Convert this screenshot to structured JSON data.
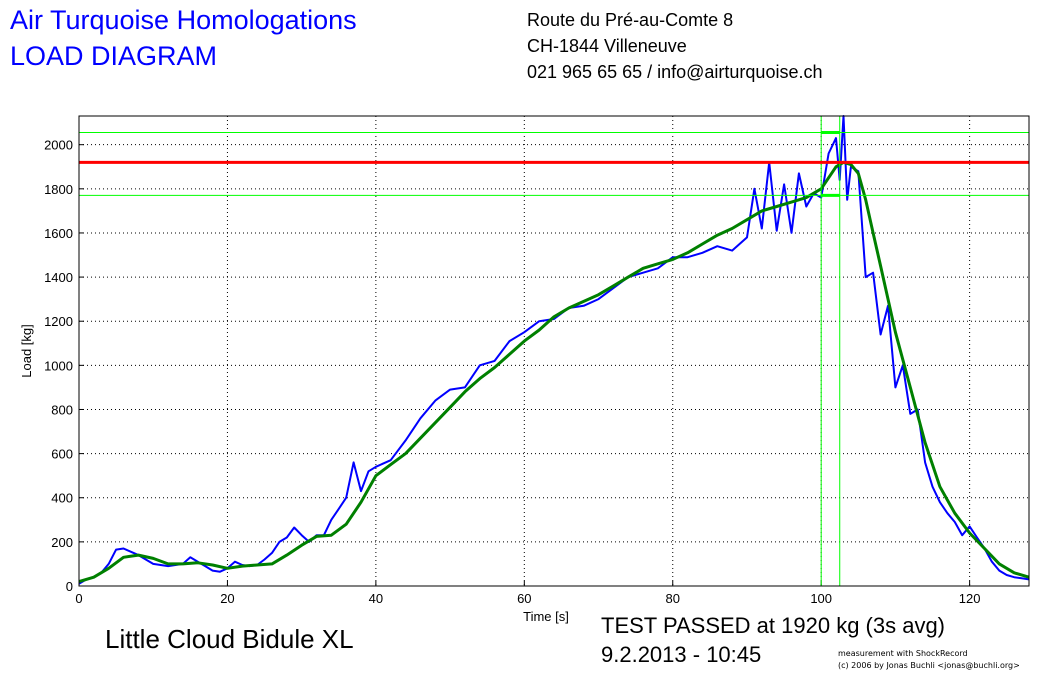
{
  "header": {
    "title_line1": "Air Turquoise Homologations",
    "title_line2": "LOAD DIAGRAM",
    "address_line1": "Route du Pré-au-Comte 8",
    "address_line2": "CH-1844 Villeneuve",
    "address_line3": "021 965 65 65 / info@airturquoise.ch"
  },
  "footer": {
    "glider_name": "Little Cloud Bidule XL",
    "result": "TEST PASSED at 1920 kg (3s avg)",
    "datetime": "9.2.2013 - 10:45",
    "credit_line1": "measurement with ShockRecord",
    "credit_line2": "(c) 2006 by Jonas Buchli <jonas@buchli.org>"
  },
  "colors": {
    "title": "#0000ff",
    "raw_series": "#0000ff",
    "avg_series": "#008000",
    "threshold_line": "#ff0000",
    "marker_lines": "#00ff00",
    "grid": "#000000"
  },
  "chart_data": {
    "type": "line",
    "xlabel": "Time [s]",
    "ylabel": "Load [kg]",
    "xlim": [
      0,
      128
    ],
    "ylim": [
      0,
      2130
    ],
    "xticks": [
      0,
      20,
      40,
      60,
      80,
      100,
      120
    ],
    "yticks": [
      0,
      200,
      400,
      600,
      800,
      1000,
      1200,
      1400,
      1600,
      1800,
      2000
    ],
    "grid": "dotted",
    "threshold": 1920,
    "band_lines_y": [
      1770,
      2055
    ],
    "vertical_markers_x": [
      100,
      102.5
    ],
    "series": [
      {
        "key": "raw",
        "x": [
          0,
          1,
          2,
          3,
          4,
          5,
          6,
          7,
          8,
          9,
          10,
          11,
          12,
          13,
          14,
          15,
          16,
          17,
          18,
          19,
          20,
          21,
          22,
          23,
          24,
          25,
          26,
          27,
          28,
          29,
          30,
          31,
          32,
          33,
          34,
          35,
          36,
          37,
          38,
          39,
          40,
          42,
          44,
          46,
          48,
          50,
          52,
          54,
          56,
          58,
          60,
          62,
          64,
          66,
          68,
          70,
          72,
          74,
          76,
          78,
          80,
          82,
          84,
          86,
          88,
          90,
          91,
          92,
          93,
          94,
          95,
          96,
          97,
          98,
          99,
          100,
          101,
          102,
          102.5,
          103,
          103.5,
          104,
          105,
          106,
          107,
          108,
          109,
          110,
          111,
          112,
          113,
          114,
          115,
          116,
          117,
          118,
          119,
          120,
          121,
          122,
          123,
          124,
          125,
          126,
          127,
          128
        ],
        "values": [
          10,
          30,
          40,
          60,
          100,
          165,
          170,
          155,
          140,
          120,
          100,
          95,
          90,
          95,
          100,
          130,
          110,
          90,
          70,
          65,
          80,
          110,
          95,
          90,
          95,
          120,
          150,
          200,
          220,
          265,
          230,
          200,
          230,
          230,
          300,
          350,
          400,
          560,
          430,
          520,
          540,
          570,
          660,
          760,
          840,
          890,
          900,
          1000,
          1020,
          1110,
          1150,
          1200,
          1210,
          1260,
          1270,
          1300,
          1350,
          1400,
          1420,
          1440,
          1490,
          1490,
          1510,
          1540,
          1520,
          1580,
          1800,
          1620,
          1920,
          1610,
          1820,
          1600,
          1870,
          1720,
          1780,
          1760,
          1960,
          2030,
          1840,
          2130,
          1750,
          1900,
          1880,
          1400,
          1420,
          1140,
          1270,
          900,
          1000,
          780,
          800,
          560,
          450,
          380,
          330,
          290,
          230,
          270,
          220,
          170,
          110,
          70,
          50,
          40,
          35,
          30
        ]
      },
      {
        "key": "avg",
        "x": [
          0,
          2,
          4,
          6,
          8,
          10,
          12,
          14,
          16,
          18,
          20,
          22,
          24,
          26,
          28,
          30,
          32,
          34,
          36,
          38,
          40,
          42,
          44,
          46,
          48,
          50,
          52,
          54,
          56,
          58,
          60,
          62,
          64,
          66,
          68,
          70,
          72,
          74,
          76,
          78,
          80,
          82,
          84,
          86,
          88,
          90,
          92,
          94,
          96,
          98,
          100,
          101,
          102,
          103,
          104,
          105,
          106,
          107,
          108,
          109,
          110,
          112,
          114,
          116,
          118,
          120,
          122,
          124,
          126,
          128
        ],
        "values": [
          20,
          40,
          80,
          130,
          140,
          125,
          100,
          100,
          105,
          95,
          80,
          90,
          95,
          100,
          140,
          185,
          225,
          230,
          280,
          380,
          500,
          550,
          600,
          670,
          740,
          810,
          880,
          940,
          990,
          1050,
          1110,
          1160,
          1220,
          1260,
          1290,
          1320,
          1360,
          1400,
          1440,
          1460,
          1480,
          1510,
          1550,
          1590,
          1620,
          1660,
          1700,
          1720,
          1740,
          1760,
          1800,
          1850,
          1900,
          1920,
          1910,
          1870,
          1750,
          1600,
          1450,
          1300,
          1150,
          900,
          650,
          450,
          330,
          240,
          170,
          100,
          60,
          40
        ]
      }
    ]
  }
}
